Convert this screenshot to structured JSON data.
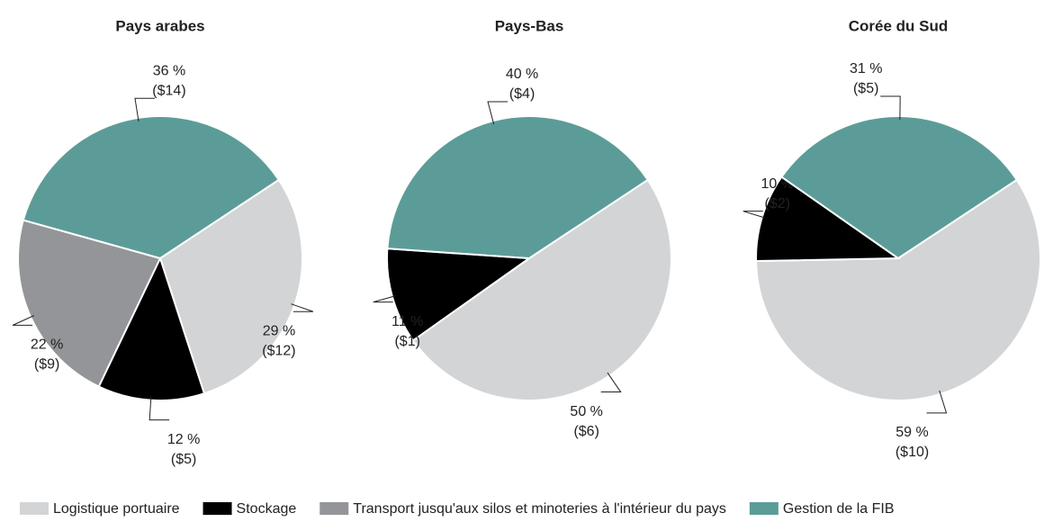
{
  "chart_data": [
    {
      "type": "pie",
      "title": "Pays arabes",
      "categories": [
        "Logistique portuaire",
        "Stockage",
        "Transport jusqu'aux silos et minoteries à l'intérieur du pays",
        "Gestion de la FIB"
      ],
      "colors": [
        "#d3d4d6",
        "#000000",
        "#939598",
        "#5c9c98"
      ],
      "values": [
        29,
        12,
        22,
        36
      ],
      "value_labels": [
        "29 %",
        "12 %",
        "22 %",
        "36 %"
      ],
      "amounts": [
        12,
        5,
        9,
        14
      ],
      "amount_labels": [
        "($12)",
        "($5)",
        "($9)",
        "($14)"
      ]
    },
    {
      "type": "pie",
      "title": "Pays-Bas",
      "categories": [
        "Logistique portuaire",
        "Stockage",
        "Gestion de la FIB"
      ],
      "colors": [
        "#d3d4d6",
        "#000000",
        "#5c9c98"
      ],
      "values": [
        50,
        11,
        40
      ],
      "value_labels": [
        "50 %",
        "11 %",
        "40 %"
      ],
      "amounts": [
        6,
        1,
        4
      ],
      "amount_labels": [
        "($6)",
        "($1)",
        "($4)"
      ]
    },
    {
      "type": "pie",
      "title": "Corée du Sud",
      "categories": [
        "Logistique portuaire",
        "Stockage",
        "Gestion de la FIB"
      ],
      "colors": [
        "#d3d4d6",
        "#000000",
        "#5c9c98"
      ],
      "values": [
        59,
        10,
        31
      ],
      "value_labels": [
        "59 %",
        "10 %",
        "31 %"
      ],
      "amounts": [
        10,
        2,
        5
      ],
      "amount_labels": [
        "($10)",
        "($2)",
        "($5)"
      ]
    }
  ],
  "legend": {
    "labels": [
      "Logistique portuaire",
      "Stockage",
      "Transport jusqu'aux silos et minoteries à l'intérieur du pays",
      "Gestion de la FIB"
    ],
    "colors": [
      "#d3d4d6",
      "#000000",
      "#939598",
      "#5c9c98"
    ]
  }
}
